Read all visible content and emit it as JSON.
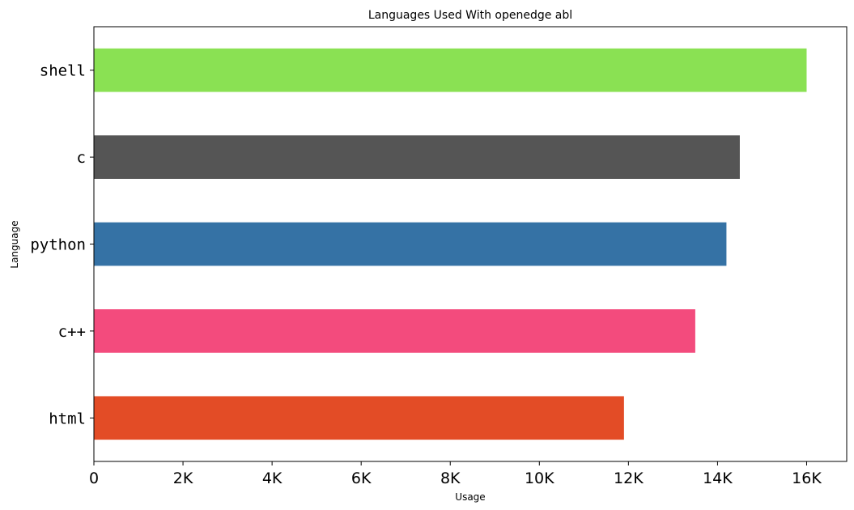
{
  "chart_data": {
    "type": "bar",
    "orientation": "horizontal",
    "title": "Languages Used With openedge abl",
    "xlabel": "Usage",
    "ylabel": "Language",
    "xlim": [
      0,
      16900
    ],
    "xticks": [
      0,
      2000,
      4000,
      6000,
      8000,
      10000,
      12000,
      14000,
      16000
    ],
    "xtick_labels": [
      "0",
      "2K",
      "4K",
      "6K",
      "8K",
      "10K",
      "12K",
      "14K",
      "16K"
    ],
    "categories": [
      "shell",
      "c",
      "python",
      "c++",
      "html"
    ],
    "values": [
      16000,
      14500,
      14200,
      13500,
      11900
    ],
    "colors": [
      "#8ae153",
      "#555555",
      "#3572a5",
      "#f34b7d",
      "#e34c26"
    ],
    "grid": false,
    "legend": "none"
  }
}
